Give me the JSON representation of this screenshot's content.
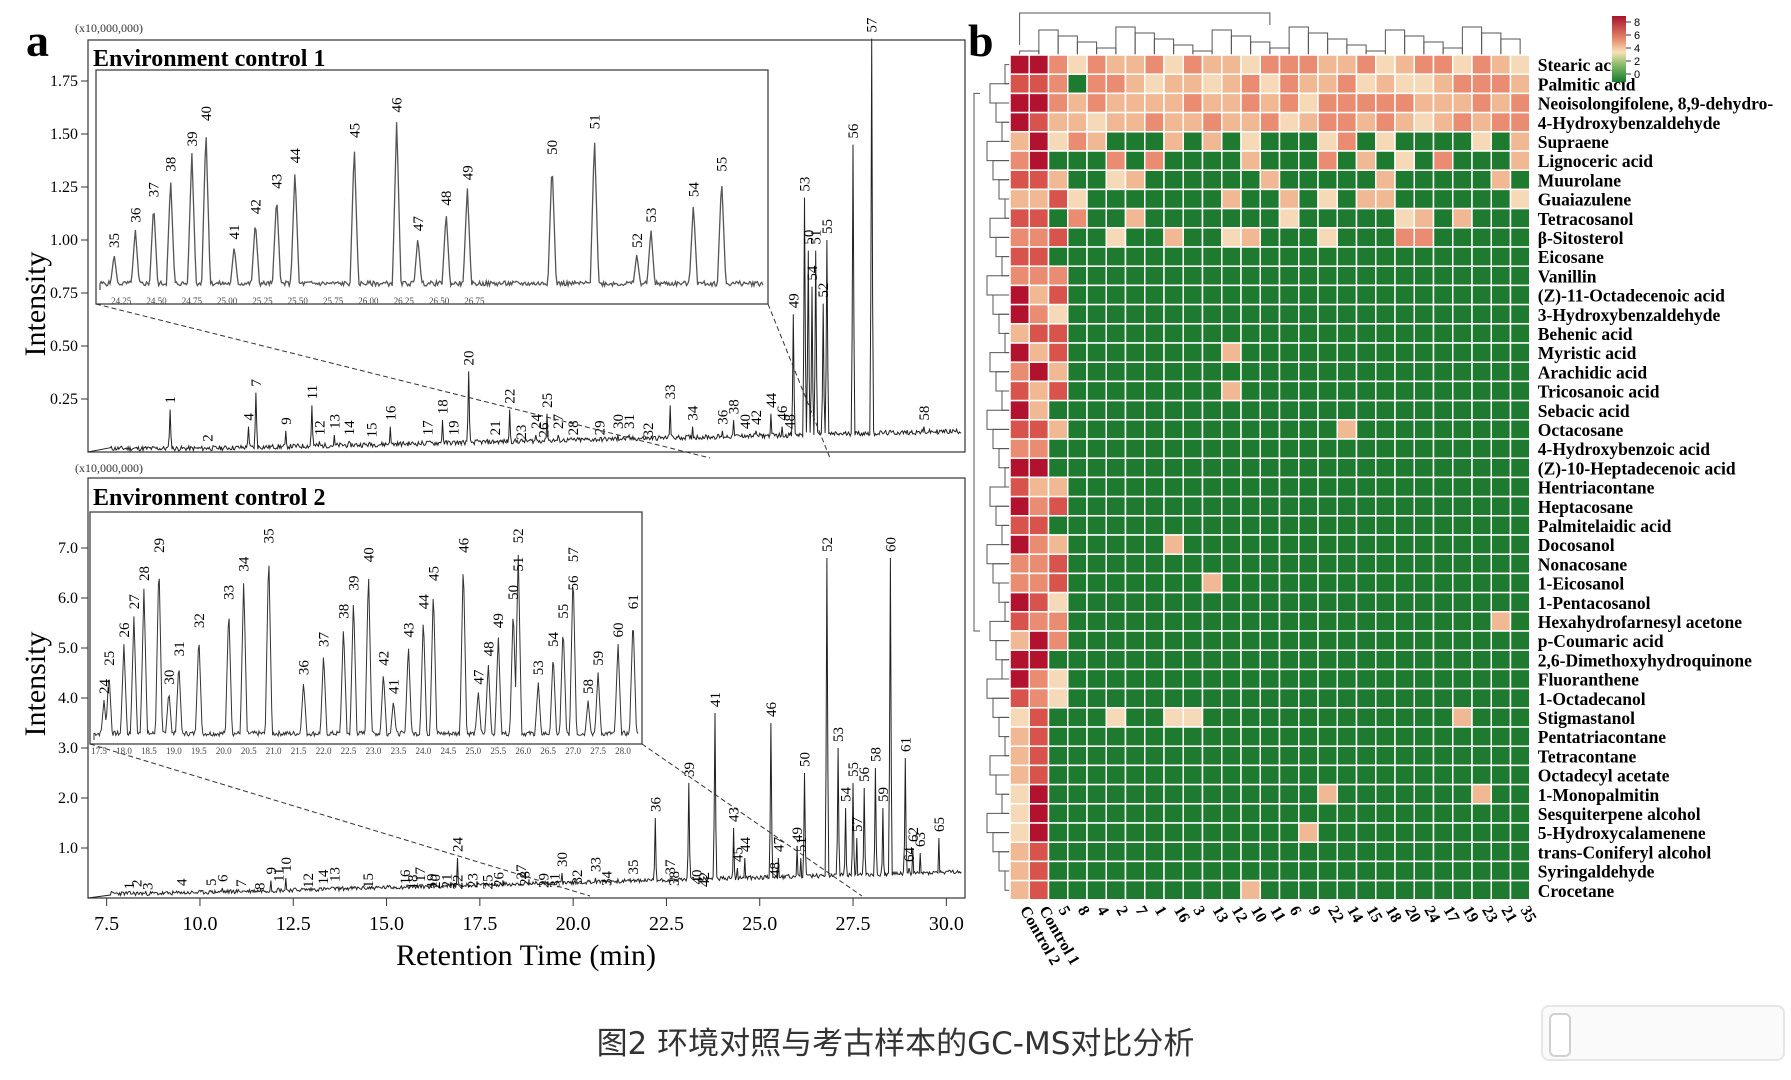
{
  "panel_a": {
    "label": "a",
    "scale_note": "(x10,000,000)",
    "y_axis_label": "Intensity",
    "x_axis_label": "Retention Time (min)",
    "x_ticks": [
      "7.5",
      "10.0",
      "12.5",
      "15.0",
      "17.5",
      "20.0",
      "22.5",
      "25.0",
      "27.5",
      "30.0"
    ],
    "top": {
      "title": "Environment control 1",
      "y_ticks": [
        "0.25",
        "0.50",
        "0.75",
        "1.00",
        "1.25",
        "1.50",
        "1.75"
      ],
      "inset_x_ticks": [
        "24.25",
        "24.50",
        "24.75",
        "25.00",
        "25.25",
        "25.50",
        "25.75",
        "26.00",
        "26.25",
        "26.50",
        "26.75"
      ],
      "peaks": [
        {
          "id": "1",
          "t": 9.2,
          "h": 0.2
        },
        {
          "id": "2",
          "t": 10.2,
          "h": 0.02
        },
        {
          "id": "4",
          "t": 11.3,
          "h": 0.12
        },
        {
          "id": "7",
          "t": 11.5,
          "h": 0.28
        },
        {
          "id": "9",
          "t": 12.3,
          "h": 0.1
        },
        {
          "id": "11",
          "t": 13.0,
          "h": 0.22
        },
        {
          "id": "12",
          "t": 13.2,
          "h": 0.05
        },
        {
          "id": "13",
          "t": 13.6,
          "h": 0.08
        },
        {
          "id": "14",
          "t": 14.0,
          "h": 0.05
        },
        {
          "id": "15",
          "t": 14.6,
          "h": 0.04
        },
        {
          "id": "16",
          "t": 15.1,
          "h": 0.12
        },
        {
          "id": "17",
          "t": 16.1,
          "h": 0.05
        },
        {
          "id": "18",
          "t": 16.5,
          "h": 0.15
        },
        {
          "id": "19",
          "t": 16.8,
          "h": 0.05
        },
        {
          "id": "20",
          "t": 17.2,
          "h": 0.38
        },
        {
          "id": "21",
          "t": 17.9,
          "h": 0.05
        },
        {
          "id": "22",
          "t": 18.3,
          "h": 0.2
        },
        {
          "id": "23",
          "t": 18.6,
          "h": 0.03
        },
        {
          "id": "24",
          "t": 19.0,
          "h": 0.08
        },
        {
          "id": "25",
          "t": 19.3,
          "h": 0.18
        },
        {
          "id": "26",
          "t": 19.2,
          "h": 0.04
        },
        {
          "id": "27",
          "t": 19.6,
          "h": 0.08
        },
        {
          "id": "28",
          "t": 20.0,
          "h": 0.05
        },
        {
          "id": "29",
          "t": 20.7,
          "h": 0.05
        },
        {
          "id": "30",
          "t": 21.2,
          "h": 0.08
        },
        {
          "id": "31",
          "t": 21.5,
          "h": 0.08
        },
        {
          "id": "32",
          "t": 22.0,
          "h": 0.04
        },
        {
          "id": "33",
          "t": 22.6,
          "h": 0.22
        },
        {
          "id": "34",
          "t": 23.2,
          "h": 0.12
        },
        {
          "id": "36",
          "t": 24.0,
          "h": 0.1
        },
        {
          "id": "38",
          "t": 24.3,
          "h": 0.15
        },
        {
          "id": "40",
          "t": 24.6,
          "h": 0.08
        },
        {
          "id": "42",
          "t": 24.9,
          "h": 0.1
        },
        {
          "id": "44",
          "t": 25.3,
          "h": 0.18
        },
        {
          "id": "46",
          "t": 25.6,
          "h": 0.12
        },
        {
          "id": "48",
          "t": 25.8,
          "h": 0.08
        },
        {
          "id": "49",
          "t": 25.9,
          "h": 0.65
        },
        {
          "id": "50",
          "t": 26.3,
          "h": 0.95
        },
        {
          "id": "51",
          "t": 26.5,
          "h": 0.95
        },
        {
          "id": "52",
          "t": 26.7,
          "h": 0.7
        },
        {
          "id": "53",
          "t": 26.2,
          "h": 1.2
        },
        {
          "id": "54",
          "t": 26.4,
          "h": 0.78
        },
        {
          "id": "55",
          "t": 26.8,
          "h": 1.0
        },
        {
          "id": "56",
          "t": 27.5,
          "h": 1.45
        },
        {
          "id": "57",
          "t": 28.0,
          "h": 1.95
        },
        {
          "id": "58",
          "t": 29.4,
          "h": 0.12
        }
      ],
      "inset_peaks": [
        {
          "id": "35",
          "t": 24.2
        },
        {
          "id": "36",
          "t": 24.35
        },
        {
          "id": "37",
          "t": 24.48
        },
        {
          "id": "38",
          "t": 24.6
        },
        {
          "id": "39",
          "t": 24.75
        },
        {
          "id": "40",
          "t": 24.85
        },
        {
          "id": "41",
          "t": 25.05
        },
        {
          "id": "42",
          "t": 25.2
        },
        {
          "id": "43",
          "t": 25.35
        },
        {
          "id": "44",
          "t": 25.48
        },
        {
          "id": "45",
          "t": 25.9
        },
        {
          "id": "46",
          "t": 26.2
        },
        {
          "id": "47",
          "t": 26.35
        },
        {
          "id": "48",
          "t": 26.55
        },
        {
          "id": "49",
          "t": 26.7
        },
        {
          "id": "50",
          "t": 27.3
        },
        {
          "id": "51",
          "t": 27.6
        },
        {
          "id": "52",
          "t": 27.9
        },
        {
          "id": "53",
          "t": 28.0
        },
        {
          "id": "54",
          "t": 28.3
        },
        {
          "id": "55",
          "t": 28.5
        }
      ]
    },
    "bottom": {
      "title": "Environment control 2",
      "y_ticks": [
        "1.0",
        "2.0",
        "3.0",
        "4.0",
        "5.0",
        "6.0",
        "7.0"
      ],
      "inset_x_ticks": [
        "17.5",
        "18.0",
        "18.5",
        "19.0",
        "19.5",
        "20.0",
        "20.5",
        "21.0",
        "21.5",
        "22.0",
        "22.5",
        "23.0",
        "23.5",
        "24.0",
        "24.5",
        "25.0",
        "25.5",
        "26.0",
        "26.5",
        "27.0",
        "27.5",
        "28.0"
      ],
      "peaks": [
        {
          "id": "1",
          "t": 8.1,
          "h": 0.05
        },
        {
          "id": "2",
          "t": 8.3,
          "h": 0.1
        },
        {
          "id": "3",
          "t": 8.6,
          "h": 0.04
        },
        {
          "id": "4",
          "t": 9.5,
          "h": 0.12
        },
        {
          "id": "5",
          "t": 10.3,
          "h": 0.12
        },
        {
          "id": "6",
          "t": 10.6,
          "h": 0.2
        },
        {
          "id": "7",
          "t": 11.1,
          "h": 0.1
        },
        {
          "id": "8",
          "t": 11.6,
          "h": 0.04
        },
        {
          "id": "9",
          "t": 11.9,
          "h": 0.35
        },
        {
          "id": "10",
          "t": 12.3,
          "h": 0.4
        },
        {
          "id": "11",
          "t": 12.1,
          "h": 0.2
        },
        {
          "id": "12",
          "t": 12.9,
          "h": 0.08
        },
        {
          "id": "13",
          "t": 13.6,
          "h": 0.2
        },
        {
          "id": "14",
          "t": 13.3,
          "h": 0.15
        },
        {
          "id": "15",
          "t": 14.5,
          "h": 0.08
        },
        {
          "id": "16",
          "t": 15.5,
          "h": 0.15
        },
        {
          "id": "17",
          "t": 15.9,
          "h": 0.2
        },
        {
          "id": "18",
          "t": 15.7,
          "h": 0.05
        },
        {
          "id": "19",
          "t": 16.2,
          "h": 0.07
        },
        {
          "id": "20",
          "t": 16.3,
          "h": 0.06
        },
        {
          "id": "21",
          "t": 16.6,
          "h": 0.07
        },
        {
          "id": "22",
          "t": 16.9,
          "h": 0.05
        },
        {
          "id": "23",
          "t": 17.3,
          "h": 0.08
        },
        {
          "id": "24",
          "t": 16.9,
          "h": 0.8
        },
        {
          "id": "25",
          "t": 17.7,
          "h": 0.05
        },
        {
          "id": "26",
          "t": 18.0,
          "h": 0.1
        },
        {
          "id": "27",
          "t": 18.6,
          "h": 0.25
        },
        {
          "id": "28",
          "t": 18.7,
          "h": 0.12
        },
        {
          "id": "29",
          "t": 19.2,
          "h": 0.08
        },
        {
          "id": "30",
          "t": 19.7,
          "h": 0.5
        },
        {
          "id": "31",
          "t": 19.5,
          "h": 0.08
        },
        {
          "id": "32",
          "t": 20.1,
          "h": 0.15
        },
        {
          "id": "33",
          "t": 20.6,
          "h": 0.4
        },
        {
          "id": "34",
          "t": 20.9,
          "h": 0.12
        },
        {
          "id": "35",
          "t": 21.6,
          "h": 0.35
        },
        {
          "id": "36",
          "t": 22.2,
          "h": 1.6
        },
        {
          "id": "37",
          "t": 22.6,
          "h": 0.35
        },
        {
          "id": "38",
          "t": 22.7,
          "h": 0.12
        },
        {
          "id": "39",
          "t": 23.1,
          "h": 2.3
        },
        {
          "id": "40",
          "t": 23.3,
          "h": 0.15
        },
        {
          "id": "41",
          "t": 23.8,
          "h": 3.7
        },
        {
          "id": "42",
          "t": 23.5,
          "h": 0.1
        },
        {
          "id": "43",
          "t": 24.3,
          "h": 1.4
        },
        {
          "id": "44",
          "t": 24.6,
          "h": 0.8
        },
        {
          "id": "45",
          "t": 24.4,
          "h": 0.6
        },
        {
          "id": "46",
          "t": 25.3,
          "h": 3.5
        },
        {
          "id": "47",
          "t": 25.5,
          "h": 0.8
        },
        {
          "id": "48",
          "t": 25.4,
          "h": 0.3
        },
        {
          "id": "49",
          "t": 26.0,
          "h": 1.0
        },
        {
          "id": "50",
          "t": 26.2,
          "h": 2.5
        },
        {
          "id": "51",
          "t": 26.1,
          "h": 0.8
        },
        {
          "id": "52",
          "t": 26.8,
          "h": 6.8
        },
        {
          "id": "53",
          "t": 27.1,
          "h": 3.0
        },
        {
          "id": "54",
          "t": 27.3,
          "h": 1.8
        },
        {
          "id": "55",
          "t": 27.5,
          "h": 2.3
        },
        {
          "id": "56",
          "t": 27.8,
          "h": 2.2
        },
        {
          "id": "57",
          "t": 27.6,
          "h": 1.2
        },
        {
          "id": "58",
          "t": 28.1,
          "h": 2.6
        },
        {
          "id": "59",
          "t": 28.3,
          "h": 1.8
        },
        {
          "id": "60",
          "t": 28.5,
          "h": 6.8
        },
        {
          "id": "61",
          "t": 28.9,
          "h": 2.8
        },
        {
          "id": "62",
          "t": 29.1,
          "h": 1.0
        },
        {
          "id": "63",
          "t": 29.3,
          "h": 0.9
        },
        {
          "id": "64",
          "t": 29.0,
          "h": 0.6
        },
        {
          "id": "65",
          "t": 29.8,
          "h": 1.2
        }
      ],
      "inset_peaks": [
        {
          "id": "24",
          "t": 17.6
        },
        {
          "id": "25",
          "t": 17.7
        },
        {
          "id": "26",
          "t": 18.0
        },
        {
          "id": "27",
          "t": 18.2
        },
        {
          "id": "28",
          "t": 18.4
        },
        {
          "id": "29",
          "t": 18.7
        },
        {
          "id": "30",
          "t": 18.9
        },
        {
          "id": "31",
          "t": 19.1
        },
        {
          "id": "32",
          "t": 19.5
        },
        {
          "id": "33",
          "t": 20.1
        },
        {
          "id": "34",
          "t": 20.4
        },
        {
          "id": "35",
          "t": 20.9
        },
        {
          "id": "36",
          "t": 21.6
        },
        {
          "id": "37",
          "t": 22.0
        },
        {
          "id": "38",
          "t": 22.4
        },
        {
          "id": "39",
          "t": 22.6
        },
        {
          "id": "40",
          "t": 22.9
        },
        {
          "id": "41",
          "t": 23.4
        },
        {
          "id": "42",
          "t": 23.2
        },
        {
          "id": "43",
          "t": 23.7
        },
        {
          "id": "44",
          "t": 24.0
        },
        {
          "id": "45",
          "t": 24.2
        },
        {
          "id": "46",
          "t": 24.8
        },
        {
          "id": "47",
          "t": 25.1
        },
        {
          "id": "48",
          "t": 25.3
        },
        {
          "id": "49",
          "t": 25.5
        },
        {
          "id": "50",
          "t": 25.8
        },
        {
          "id": "51",
          "t": 25.9
        },
        {
          "id": "52",
          "t": 25.9
        },
        {
          "id": "53",
          "t": 26.3
        },
        {
          "id": "54",
          "t": 26.6
        },
        {
          "id": "55",
          "t": 26.8
        },
        {
          "id": "56",
          "t": 27.0
        },
        {
          "id": "57",
          "t": 27.0
        },
        {
          "id": "58",
          "t": 27.3
        },
        {
          "id": "59",
          "t": 27.5
        },
        {
          "id": "60",
          "t": 27.9
        },
        {
          "id": "61",
          "t": 28.2
        }
      ]
    }
  },
  "panel_b": {
    "label": "b",
    "legend_ticks": [
      "8",
      "6",
      "4",
      "2",
      "0"
    ],
    "compounds": [
      "Stearic acid",
      "Palmitic acid",
      "Neoisolongifolene, 8,9-dehydro-",
      "4-Hydroxybenzaldehyde",
      "Supraene",
      "Lignoceric acid",
      "Muurolane",
      "Guaiazulene",
      "Tetracosanol",
      "β-Sitosterol",
      "Eicosane",
      "Vanillin",
      "(Z)-11-Octadecenoic acid",
      "3-Hydroxybenzaldehyde",
      "Behenic acid",
      "Myristic acid",
      "Arachidic acid",
      "Tricosanoic acid",
      "Sebacic acid",
      "Octacosane",
      "4-Hydroxybenzoic acid",
      "(Z)-10-Heptadecenoic acid",
      "Hentriacontane",
      "Heptacosane",
      "Palmitelaidic acid",
      "Docosanol",
      "Nonacosane",
      "1-Eicosanol",
      "1-Pentacosanol",
      "Hexahydrofarnesyl acetone",
      "p-Coumaric acid",
      "2,6-Dimethoxyhydroquinone",
      "Fluoranthene",
      "1-Octadecanol",
      "Stigmastanol",
      "Pentatriacontane",
      "Tetracontane",
      "Octadecyl acetate",
      "1-Monopalmitin",
      "Sesquiterpene alcohol",
      "5-Hydroxycalamenene",
      "trans-Coniferyl alcohol",
      "Syringaldehyde",
      "Crocetane"
    ],
    "samples": [
      "Control 2",
      "Control 1",
      "5",
      "8",
      "4",
      "2",
      "7",
      "1",
      "16",
      "3",
      "13",
      "12",
      "10",
      "11",
      "6",
      "9",
      "22",
      "14",
      "15",
      "18",
      "20",
      "24",
      "17",
      "19",
      "23",
      "21",
      "35"
    ]
  },
  "caption": "图2 环境对照与考古样本的GC-MS对比分析"
}
